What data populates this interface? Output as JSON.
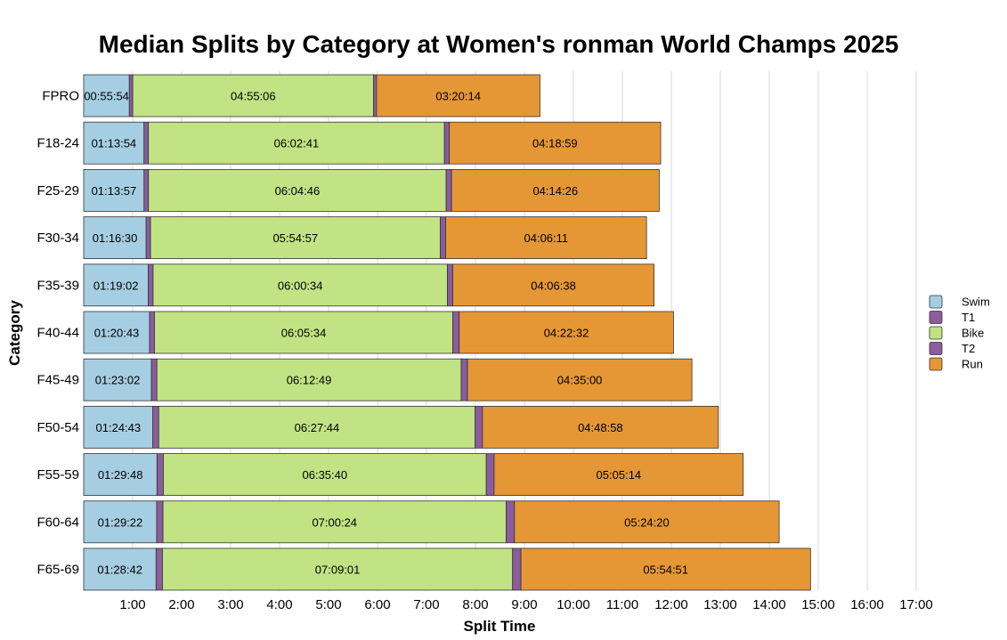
{
  "chart_data": {
    "type": "bar",
    "orientation": "horizontal",
    "stacked": true,
    "title": "Median Splits by Category at Women's ronman World Champs 2025",
    "xlabel": "Split Time",
    "ylabel": "Category",
    "x_unit": "hours",
    "xlim": [
      0,
      17.6
    ],
    "x_ticks": [
      1,
      2,
      3,
      4,
      5,
      6,
      7,
      8,
      9,
      10,
      11,
      12,
      13,
      14,
      15,
      16,
      17
    ],
    "x_tick_labels": [
      "1:00",
      "2:00",
      "3:00",
      "4:00",
      "5:00",
      "6:00",
      "7:00",
      "8:00",
      "9:00",
      "10:00",
      "11:00",
      "12:00",
      "13:00",
      "14:00",
      "15:00",
      "16:00",
      "17:00"
    ],
    "grid": true,
    "legend_position": "right",
    "categories": [
      "FPRO",
      "F18-24",
      "F25-29",
      "F30-34",
      "F35-39",
      "F40-44",
      "F45-49",
      "F50-54",
      "F55-59",
      "F60-64",
      "F65-69"
    ],
    "series": [
      {
        "name": "Swim",
        "color": "#a6cee3",
        "labels": [
          "00:55:54",
          "01:13:54",
          "01:13:57",
          "01:16:30",
          "01:19:02",
          "01:20:43",
          "01:23:02",
          "01:24:43",
          "01:29:48",
          "01:29:22",
          "01:28:42"
        ],
        "values": [
          0.9317,
          1.2317,
          1.2325,
          1.275,
          1.3172,
          1.3453,
          1.3839,
          1.4119,
          1.4967,
          1.4894,
          1.4783
        ]
      },
      {
        "name": "T1",
        "color": "#8b5c9e",
        "values": [
          0.07,
          0.09,
          0.09,
          0.09,
          0.1,
          0.1,
          0.11,
          0.12,
          0.13,
          0.13,
          0.13
        ]
      },
      {
        "name": "Bike",
        "color": "#c1e384",
        "labels": [
          "04:55:06",
          "06:02:41",
          "06:04:46",
          "05:54:57",
          "06:00:34",
          "06:05:34",
          "06:12:49",
          "06:27:44",
          "06:35:40",
          "07:00:24",
          "07:09:01"
        ],
        "values": [
          4.9183,
          6.0447,
          6.0794,
          5.9158,
          6.0094,
          6.0928,
          6.2136,
          6.4622,
          6.5944,
          7.0067,
          7.1503
        ]
      },
      {
        "name": "T2",
        "color": "#8b5c9e",
        "values": [
          0.06,
          0.1,
          0.11,
          0.11,
          0.11,
          0.13,
          0.13,
          0.15,
          0.16,
          0.17,
          0.17
        ]
      },
      {
        "name": "Run",
        "color": "#e59735",
        "labels": [
          "03:20:14",
          "04:18:59",
          "04:14:26",
          "04:06:11",
          "04:06:38",
          "04:22:32",
          "04:35:00",
          "04:48:58",
          "05:05:14",
          "05:24:20",
          "05:54:51"
        ],
        "values": [
          3.3372,
          4.3164,
          4.2406,
          4.1031,
          4.1106,
          4.3756,
          4.5833,
          4.8161,
          5.0872,
          5.4056,
          5.9142
        ]
      }
    ]
  }
}
